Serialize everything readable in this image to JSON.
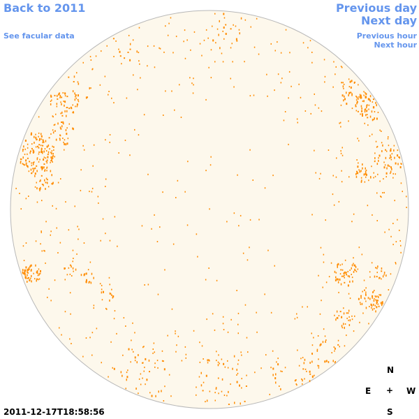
{
  "nav": {
    "back_label": "Back to 2011",
    "facular_label": "See facular data",
    "prev_day_label": "Previous day",
    "next_day_label": "Next day",
    "prev_hour_label": "Previous hour",
    "next_hour_label": "Next hour"
  },
  "timestamp": "2011-12-17T18:58:56",
  "compass": {
    "north": "N",
    "east": "E",
    "center": "+",
    "west": "W",
    "south": "S"
  },
  "colors": {
    "link": "#6495ed",
    "disk_fill": "#fdf8ec",
    "disk_stroke": "#b8b8b8",
    "magnetic_mark": "#ff8c00"
  }
}
